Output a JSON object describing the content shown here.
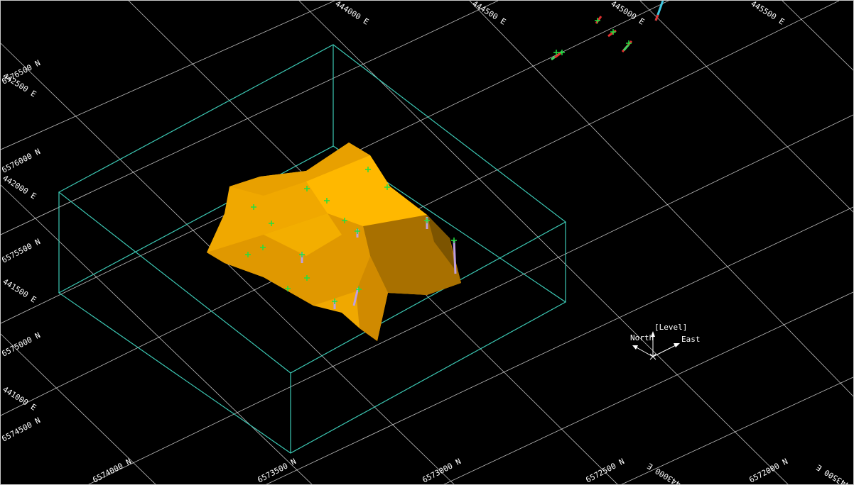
{
  "view": {
    "background": "#000000",
    "grid_color": "#ffffff",
    "box_color": "#3cc8b4",
    "orebody_color": "#f0a800"
  },
  "grid_labels": {
    "easting_top": [
      "444000 E",
      "444500 E",
      "445000 E",
      "445500 E"
    ],
    "easting_left": [
      "442500 E",
      "442000 E",
      "441500 E",
      "441000 E"
    ],
    "northing_left": [
      "6576500 N",
      "6576000 N",
      "6575500 N",
      "6575000 N",
      "6574500 N"
    ],
    "northing_bottom": [
      "6574000 N",
      "6573500 N",
      "6573000 N",
      "6572500 N",
      "6572000 N"
    ],
    "bottom_right_easting": [
      "443000 E",
      "443500 E"
    ]
  },
  "orientation": {
    "level_label": "[Level]",
    "north_label": "North",
    "east_label": "East"
  }
}
